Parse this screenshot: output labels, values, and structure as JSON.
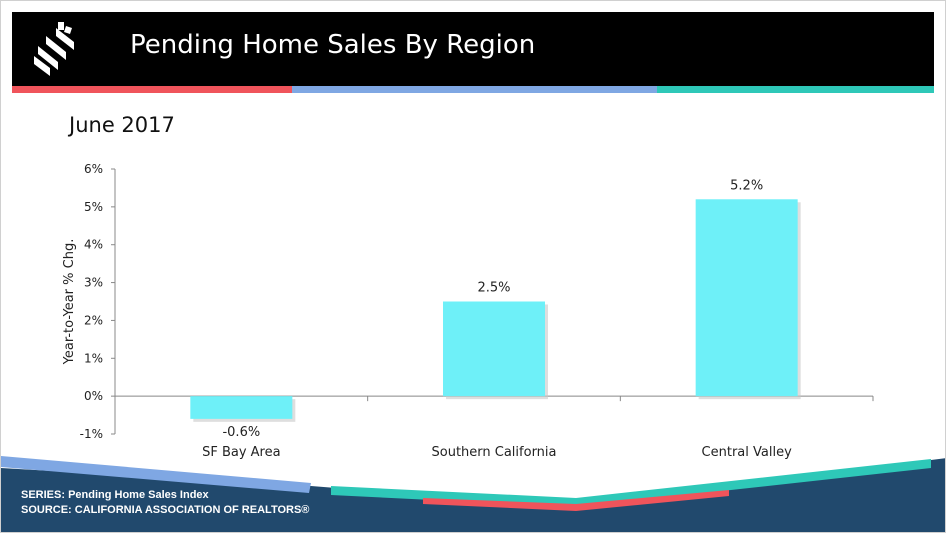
{
  "header": {
    "title": "Pending Home Sales By Region"
  },
  "colors": {
    "bar": "#6ef0f8",
    "header_bg": "#000000",
    "stripe_red": "#f0545b",
    "stripe_blue": "#7fa7e3",
    "stripe_teal": "#2ec8b8",
    "footer_navy": "#21496d"
  },
  "chart_data": {
    "type": "bar",
    "title": "June 2017",
    "ylabel": "Year-to-Year % Chg.",
    "categories": [
      "SF Bay Area",
      "Southern California",
      "Central Valley"
    ],
    "values": [
      -0.6,
      2.5,
      5.2
    ],
    "data_labels": [
      "-0.6%",
      "2.5%",
      "5.2%"
    ],
    "ylim": [
      -1,
      6
    ],
    "yticks": [
      -1,
      0,
      1,
      2,
      3,
      4,
      5,
      6
    ],
    "ytick_labels": [
      "-1%",
      "0%",
      "1%",
      "2%",
      "3%",
      "4%",
      "5%",
      "6%"
    ],
    "grid": false,
    "legend": "none"
  },
  "footer": {
    "series": "SERIES: Pending Home Sales Index",
    "source": "SOURCE:  CALIFORNIA ASSOCIATION OF REALTORS®"
  }
}
